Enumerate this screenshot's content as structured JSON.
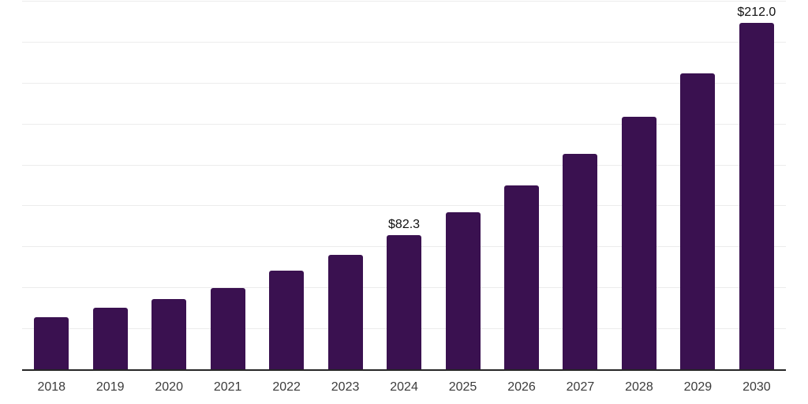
{
  "chart_data": {
    "type": "bar",
    "title": "",
    "xlabel": "",
    "ylabel": "",
    "categories": [
      "2018",
      "2019",
      "2020",
      "2021",
      "2022",
      "2023",
      "2024",
      "2025",
      "2026",
      "2027",
      "2028",
      "2029",
      "2030"
    ],
    "values": [
      32.2,
      37.9,
      43.6,
      50.3,
      60.9,
      70.2,
      82.3,
      96.4,
      112.9,
      132.2,
      154.8,
      181.2,
      212.0
    ],
    "data_labels": [
      "",
      "",
      "",
      "",
      "",
      "",
      "$82.3",
      "",
      "",
      "",
      "",
      "",
      "$212.0"
    ],
    "ylim": [
      0,
      225
    ],
    "gridline_step": 25,
    "grid": true,
    "legend": false,
    "y_tick_labels_visible": false,
    "colors": {
      "bar": "#3A1150",
      "axis": "#262626",
      "gridline": "#ECECEC",
      "tick_label": "#3B3B3B",
      "data_label": "#111111",
      "background": "#FFFFFF"
    }
  }
}
